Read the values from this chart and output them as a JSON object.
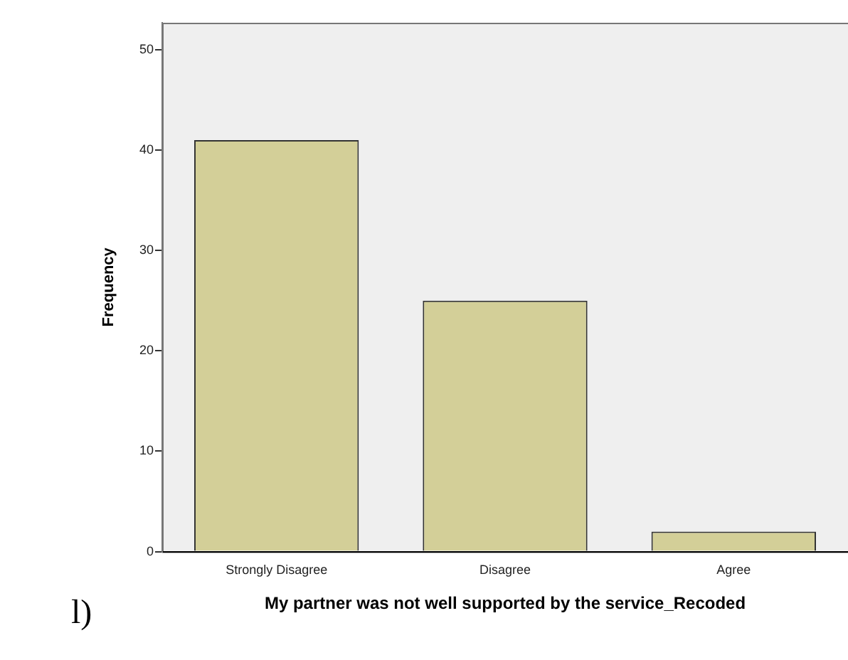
{
  "chart_data": {
    "type": "bar",
    "xlabel": "My partner was not well supported by the service_Recoded",
    "ylabel": "Frequency",
    "categories": [
      "Strongly Disagree",
      "Disagree",
      "Agree"
    ],
    "values": [
      41,
      25,
      2
    ],
    "color": "#d3cf98",
    "ylim": [
      0,
      52.7
    ],
    "yticks": [
      0,
      10,
      20,
      30,
      40,
      50
    ],
    "grid": false,
    "legend": false,
    "annotations": [
      "l)"
    ]
  }
}
